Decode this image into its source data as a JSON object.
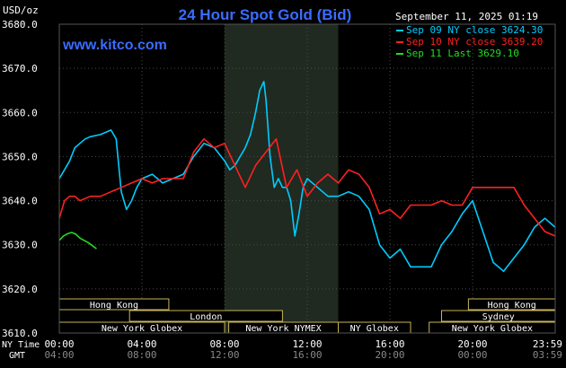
{
  "chart_data": {
    "type": "line",
    "title": "24 Hour Spot Gold (Bid)",
    "brand": "www.kitco.com",
    "timestamp": "September 11, 2025 01:19",
    "ylabel": "USD/oz",
    "ylim": [
      3610,
      3680
    ],
    "yticks": [
      "3680.0",
      "3670.0",
      "3660.0",
      "3650.0",
      "3640.0",
      "3630.0",
      "3620.0",
      "3610.0"
    ],
    "xlim": [
      0,
      24
    ],
    "ny_time_label": "NY Time",
    "gmt_label": "GMT",
    "ny_time_ticks": [
      "00:00",
      "04:00",
      "08:00",
      "12:00",
      "16:00",
      "20:00",
      "23:59"
    ],
    "gmt_ticks": [
      "04:00",
      "08:00",
      "12:00",
      "16:00",
      "20:00",
      "00:00",
      "03:59"
    ],
    "highlight_band": [
      8,
      13.5
    ],
    "sessions": [
      {
        "label": "Hong Kong",
        "start": 0,
        "end": 5.3,
        "row": 1
      },
      {
        "label": "London",
        "start": 3.4,
        "end": 10.8,
        "row": 2
      },
      {
        "label": "New York Globex",
        "start": 0,
        "end": 8,
        "row": 3
      },
      {
        "label": "New York NYMEX",
        "start": 8.2,
        "end": 13.5,
        "row": 3
      },
      {
        "label": "NY Globex",
        "start": 13.5,
        "end": 17,
        "row": 3
      },
      {
        "label": "Hong Kong",
        "start": 19.8,
        "end": 24,
        "row": 1
      },
      {
        "label": "Sydney",
        "start": 18.5,
        "end": 24,
        "row": 2
      },
      {
        "label": "New York Globex",
        "start": 17.9,
        "end": 24,
        "row": 3
      }
    ],
    "legend_placement": "top-right",
    "series": [
      {
        "name": "Sep 09 NY close 3624.30",
        "color": "#00ccff",
        "x": [
          0,
          0.25,
          0.5,
          0.75,
          1.0,
          1.25,
          1.5,
          2.0,
          2.5,
          2.75,
          3.0,
          3.25,
          3.5,
          3.75,
          4.0,
          4.5,
          5.0,
          5.5,
          6.0,
          6.5,
          7.0,
          7.5,
          8.0,
          8.25,
          8.5,
          8.75,
          9.0,
          9.25,
          9.5,
          9.7,
          9.9,
          10.0,
          10.2,
          10.4,
          10.6,
          10.8,
          11.0,
          11.2,
          11.4,
          11.6,
          11.8,
          12.0,
          12.5,
          13.0,
          13.5,
          14.0,
          14.5,
          15.0,
          15.5,
          16.0,
          16.5,
          17.0,
          17.5,
          18.0,
          18.5,
          19.0,
          19.5,
          20.0,
          20.5,
          21.0,
          21.5,
          22.0,
          22.5,
          23.0,
          23.5,
          23.99
        ],
        "values": [
          3645,
          3647,
          3649,
          3652,
          3653,
          3654,
          3654.5,
          3655,
          3656,
          3654,
          3642,
          3638,
          3640,
          3643,
          3645,
          3646,
          3644,
          3645,
          3646,
          3650,
          3653,
          3652,
          3649,
          3647,
          3648,
          3650,
          3652,
          3655,
          3660,
          3665,
          3667,
          3663,
          3650,
          3643,
          3645,
          3643,
          3643,
          3640,
          3632,
          3637,
          3643,
          3645,
          3643,
          3641,
          3641,
          3642,
          3641,
          3638,
          3630,
          3627,
          3629,
          3625,
          3625,
          3625,
          3630,
          3633,
          3637,
          3640,
          3633,
          3626,
          3624,
          3627,
          3630,
          3634,
          3636,
          3634
        ]
      },
      {
        "name": "Sep 10 NY close 3639.20",
        "color": "#ff2020",
        "x": [
          0,
          0.25,
          0.5,
          0.75,
          1.0,
          1.5,
          2.0,
          2.5,
          3.0,
          3.5,
          4.0,
          4.5,
          5.0,
          5.5,
          6.0,
          6.5,
          7.0,
          7.5,
          8.0,
          8.5,
          9.0,
          9.5,
          10.0,
          10.5,
          11.0,
          11.5,
          12.0,
          12.5,
          13.0,
          13.5,
          14.0,
          14.5,
          15.0,
          15.5,
          16.0,
          16.5,
          17.0,
          17.5,
          18.0,
          18.5,
          19.0,
          19.5,
          20.0,
          20.5,
          21.0,
          21.5,
          22.0,
          22.5,
          23.0,
          23.5,
          23.99
        ],
        "values": [
          3636,
          3640,
          3641,
          3641,
          3640,
          3641,
          3641,
          3642,
          3643,
          3644,
          3645,
          3644,
          3645,
          3645,
          3645,
          3651,
          3654,
          3652,
          3653,
          3648,
          3643,
          3648,
          3651,
          3654,
          3643,
          3647,
          3641,
          3644,
          3646,
          3644,
          3647,
          3646,
          3643,
          3637,
          3638,
          3636,
          3639,
          3639,
          3639,
          3640,
          3639,
          3639,
          3643,
          3643,
          3643,
          3643,
          3643,
          3639,
          3636,
          3633,
          3632
        ]
      },
      {
        "name": "Sep 11 Last 3629.10",
        "color": "#22dd22",
        "x": [
          0,
          0.2,
          0.4,
          0.6,
          0.8,
          1.0,
          1.2,
          1.4,
          1.6,
          1.8
        ],
        "values": [
          3631,
          3632,
          3632.5,
          3632.8,
          3632.4,
          3631.5,
          3631,
          3630.5,
          3629.8,
          3629.1
        ]
      }
    ]
  }
}
